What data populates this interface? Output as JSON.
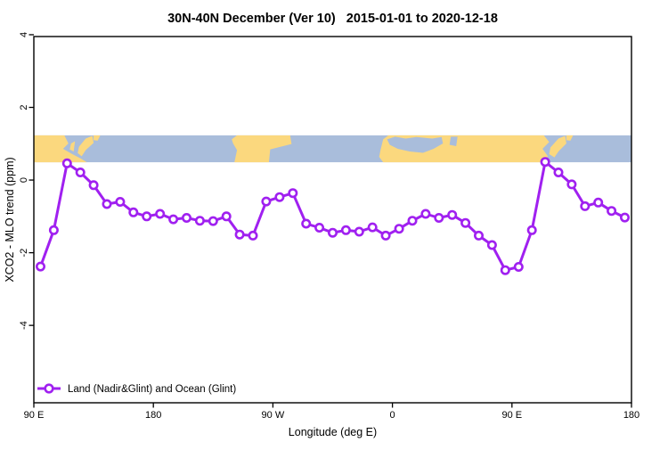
{
  "title": "30N-40N December (Ver 10)   2015-01-01 to 2020-12-18",
  "colors": {
    "series": "#A020F0",
    "land": "#FBD87E",
    "ocean": "#A9BDDB",
    "axis": "#000000",
    "background": "#FFFFFF"
  },
  "chart_data": {
    "type": "line",
    "title": "30N-40N December (Ver 10)   2015-01-01 to 2020-12-18",
    "xlabel": "Longitude (deg E)",
    "ylabel": "XCO2 - MLO trend (ppm)",
    "xlim": [
      90,
      540
    ],
    "ylim": [
      -6.13,
      3.95
    ],
    "grid": false,
    "marker": "open-circle",
    "x": [
      95,
      105,
      115,
      125,
      135,
      145,
      155,
      165,
      175,
      185,
      195,
      205,
      215,
      225,
      235,
      245,
      255,
      265,
      275,
      285,
      295,
      305,
      315,
      325,
      335,
      345,
      355,
      365,
      375,
      385,
      395,
      405,
      415,
      425,
      435,
      445,
      455,
      465,
      475,
      485,
      495,
      505,
      515,
      525,
      535
    ],
    "values": [
      -2.38,
      -1.38,
      0.46,
      0.21,
      -0.14,
      -0.66,
      -0.6,
      -0.89,
      -1.0,
      -0.93,
      -1.08,
      -1.04,
      -1.12,
      -1.13,
      -1.0,
      -1.5,
      -1.53,
      -0.59,
      -0.47,
      -0.36,
      -1.2,
      -1.31,
      -1.45,
      -1.38,
      -1.42,
      -1.3,
      -1.53,
      -1.34,
      -1.12,
      -0.93,
      -1.04,
      -0.96,
      -1.18,
      -1.53,
      -1.79,
      -2.48,
      -2.39,
      -1.38,
      0.5,
      0.21,
      -0.12,
      -0.72,
      -0.62,
      -0.85,
      -1.03
    ],
    "x_ticks": [
      {
        "lon": 90,
        "label": "90 E"
      },
      {
        "lon": 180,
        "label": "180"
      },
      {
        "lon": 270,
        "label": "90 W"
      },
      {
        "lon": 360,
        "label": "0"
      },
      {
        "lon": 450,
        "label": "90 E"
      },
      {
        "lon": 540,
        "label": "180"
      }
    ],
    "y_ticks": [
      {
        "value": 4,
        "label": "4"
      },
      {
        "value": 2,
        "label": "2"
      },
      {
        "value": 0,
        "label": "0"
      },
      {
        "value": -2,
        "label": "-2"
      },
      {
        "value": -4,
        "label": "-4"
      }
    ],
    "legend": {
      "label": "Land (Nadir&Glint) and Ocean (Glint)",
      "position": "bottom-left"
    },
    "map_band": {
      "description": "land-ocean world strip for 30N-40N drawn across the plot",
      "y_top_value": 1.23,
      "y_bottom_value": 0.49,
      "land_polygons": [
        {
          "name": "asia-east",
          "points": [
            [
              90,
              0
            ],
            [
              113,
              0
            ],
            [
              116,
              0.3
            ],
            [
              112,
              0.5
            ],
            [
              119,
              0.7
            ],
            [
              125,
              0.85
            ],
            [
              130,
              1
            ],
            [
              90,
              1
            ]
          ]
        },
        {
          "name": "korea",
          "points": [
            [
              118,
              0.3
            ],
            [
              121,
              0.22
            ],
            [
              120,
              0.6
            ],
            [
              117,
              0.52
            ]
          ]
        },
        {
          "name": "japan",
          "points": [
            [
              124,
              0.42
            ],
            [
              129,
              0.12
            ],
            [
              134,
              0.02
            ],
            [
              135,
              0.28
            ],
            [
              129,
              0.55
            ],
            [
              126,
              0.78
            ],
            [
              123,
              0.66
            ]
          ]
        },
        {
          "name": "hokkaido",
          "points": [
            [
              135,
              0
            ],
            [
              140,
              0
            ],
            [
              138,
              0.2
            ],
            [
              135,
              0.18
            ]
          ]
        },
        {
          "name": "north-america",
          "points": [
            [
              239,
              0.15
            ],
            [
              243,
              0
            ],
            [
              283,
              0
            ],
            [
              284,
              0.32
            ],
            [
              268,
              0.52
            ],
            [
              267,
              1
            ],
            [
              241,
              1
            ],
            [
              243,
              0.55
            ],
            [
              240,
              0.3
            ]
          ]
        },
        {
          "name": "eurasia-africa",
          "points": [
            [
              351,
              0.55
            ],
            [
              353,
              0.15
            ],
            [
              357,
              0
            ],
            [
              474,
              0
            ],
            [
              478,
              0.25
            ],
            [
              473,
              0.5
            ],
            [
              477,
              0.78
            ],
            [
              473,
              1
            ],
            [
              353,
              1
            ],
            [
              350,
              0.8
            ]
          ]
        },
        {
          "name": "japan-2",
          "points": [
            [
              479,
              0.45
            ],
            [
              485,
              0.12
            ],
            [
              490,
              0.02
            ],
            [
              491,
              0.3
            ],
            [
              485,
              0.6
            ],
            [
              482,
              0.82
            ],
            [
              478,
              0.7
            ]
          ]
        },
        {
          "name": "hokkaido-2",
          "points": [
            [
              491,
              0
            ],
            [
              496,
              0
            ],
            [
              494,
              0.2
            ],
            [
              491,
              0.18
            ]
          ]
        }
      ],
      "sea_patches": [
        {
          "name": "mediterranean",
          "points": [
            [
              356,
              0.15
            ],
            [
              362,
              0.05
            ],
            [
              370,
              0.12
            ],
            [
              378,
              0.06
            ],
            [
              390,
              0.12
            ],
            [
              397,
              0.06
            ],
            [
              398,
              0.3
            ],
            [
              391,
              0.5
            ],
            [
              383,
              0.65
            ],
            [
              373,
              0.6
            ],
            [
              364,
              0.5
            ],
            [
              358,
              0.35
            ]
          ]
        },
        {
          "name": "caspian",
          "points": [
            [
              404,
              0.05
            ],
            [
              409,
              0.05
            ],
            [
              408,
              0.4
            ],
            [
              403,
              0.35
            ]
          ]
        }
      ]
    }
  }
}
